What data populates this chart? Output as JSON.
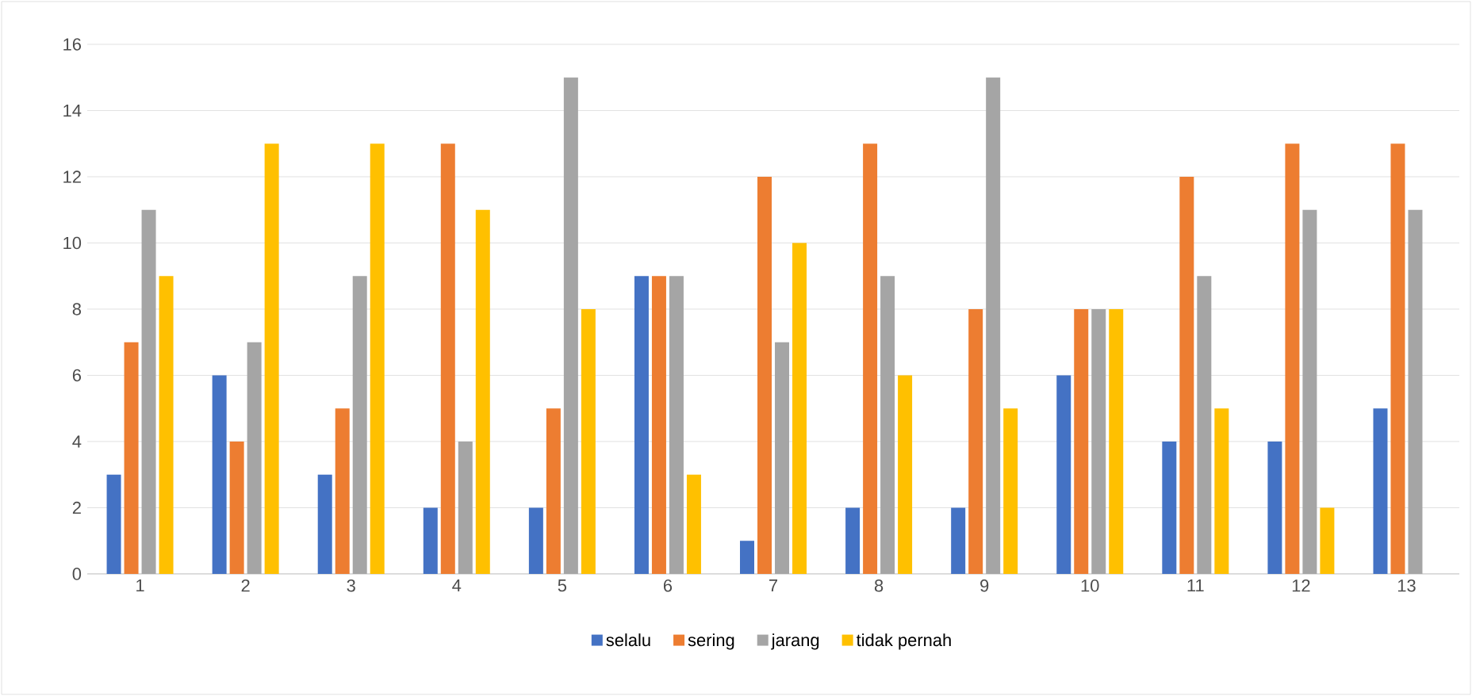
{
  "chart_data": {
    "type": "bar",
    "categories": [
      "1",
      "2",
      "3",
      "4",
      "5",
      "6",
      "7",
      "8",
      "9",
      "10",
      "11",
      "12",
      "13"
    ],
    "series": [
      {
        "name": "selalu",
        "color": "#4472c4",
        "values": [
          3,
          6,
          3,
          2,
          2,
          9,
          1,
          2,
          2,
          6,
          4,
          4,
          5
        ]
      },
      {
        "name": "sering",
        "color": "#ed7d31",
        "values": [
          7,
          4,
          5,
          13,
          5,
          9,
          12,
          13,
          8,
          8,
          12,
          13,
          13
        ]
      },
      {
        "name": "jarang",
        "color": "#a5a5a5",
        "values": [
          11,
          7,
          9,
          4,
          15,
          9,
          7,
          9,
          15,
          8,
          9,
          11,
          11
        ]
      },
      {
        "name": "tidak pernah",
        "color": "#ffc000",
        "values": [
          9,
          13,
          13,
          11,
          8,
          3,
          10,
          6,
          5,
          8,
          5,
          2,
          0
        ]
      }
    ],
    "ylim": [
      0,
      16
    ],
    "yticks": [
      0,
      2,
      4,
      6,
      8,
      10,
      12,
      14,
      16
    ],
    "grid": "y",
    "legend": "bottom"
  }
}
